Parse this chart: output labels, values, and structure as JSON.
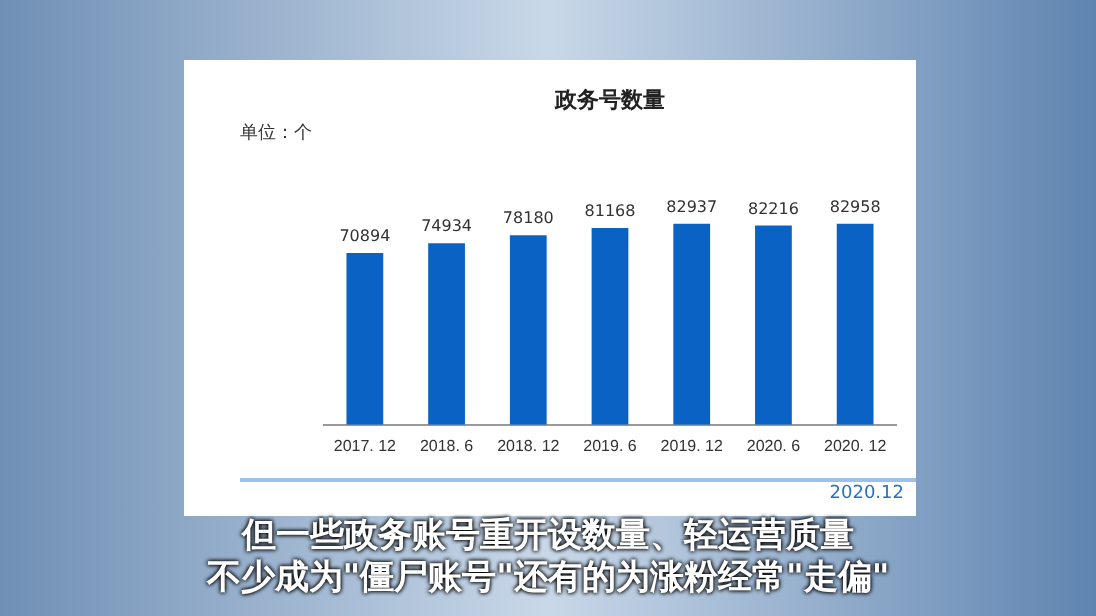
{
  "chart_data": {
    "type": "bar",
    "title": "政务号数量",
    "ylabel": "单位：个",
    "categories": [
      "2017. 12",
      "2018. 6",
      "2018. 12",
      "2019. 6",
      "2019. 12",
      "2020. 6",
      "2020. 12"
    ],
    "values": [
      70894,
      74934,
      78180,
      81168,
      82937,
      82216,
      82958
    ],
    "color": "#0a63c4",
    "tick_labels": "x",
    "data_labels": true,
    "grid": false,
    "legend": false,
    "annotations": [
      "2020.12",
      "但一些政务账号重开设数量、轻运营质量",
      "不少成为\"僵尸账号\"还有的为涨粉经常\"走偏\""
    ]
  }
}
